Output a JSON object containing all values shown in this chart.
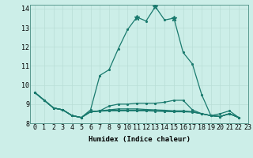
{
  "xlabel": "Humidex (Indice chaleur)",
  "background_color": "#cceee8",
  "line_color": "#1a7a6e",
  "xlim": [
    -0.5,
    23
  ],
  "ylim": [
    8,
    14.2
  ],
  "yticks": [
    8,
    9,
    10,
    11,
    12,
    13,
    14
  ],
  "xticks": [
    0,
    1,
    2,
    3,
    4,
    5,
    6,
    7,
    8,
    9,
    10,
    11,
    12,
    13,
    14,
    15,
    16,
    17,
    18,
    19,
    20,
    21,
    22,
    23
  ],
  "series": [
    [
      9.6,
      9.2,
      8.8,
      8.7,
      8.4,
      8.3,
      8.7,
      10.5,
      10.8,
      11.9,
      12.9,
      13.55,
      13.35,
      14.1,
      13.4,
      13.5,
      11.7,
      11.1,
      9.5,
      8.4,
      8.5,
      8.65,
      8.3,
      null
    ],
    [
      9.6,
      9.2,
      8.8,
      8.7,
      8.4,
      8.3,
      8.6,
      8.65,
      8.9,
      9.0,
      9.0,
      9.05,
      9.05,
      9.05,
      9.1,
      9.2,
      9.2,
      8.7,
      8.5,
      8.4,
      8.35,
      8.5,
      8.3,
      null
    ],
    [
      9.6,
      9.2,
      8.8,
      8.7,
      8.4,
      8.3,
      8.6,
      8.65,
      8.7,
      8.75,
      8.75,
      8.75,
      8.72,
      8.7,
      8.68,
      8.65,
      8.65,
      8.6,
      8.5,
      8.4,
      8.35,
      8.5,
      8.3,
      null
    ],
    [
      9.6,
      9.2,
      8.8,
      8.7,
      8.4,
      8.3,
      8.6,
      8.65,
      8.68,
      8.68,
      8.68,
      8.68,
      8.68,
      8.66,
      8.64,
      8.62,
      8.62,
      8.6,
      8.5,
      8.4,
      8.35,
      8.5,
      8.3,
      null
    ],
    [
      9.6,
      9.2,
      8.8,
      8.7,
      8.4,
      8.3,
      8.6,
      8.63,
      8.65,
      8.65,
      8.65,
      8.65,
      8.65,
      8.63,
      8.62,
      8.6,
      8.6,
      8.58,
      8.5,
      8.4,
      8.35,
      8.5,
      8.3,
      null
    ]
  ],
  "star_indices": [
    11,
    13,
    15
  ],
  "marker_size": 2.5,
  "line_width": 0.9,
  "grid_color": "#b8ddd6",
  "font_size_axis": 6.5,
  "font_size_tick": 6.0
}
